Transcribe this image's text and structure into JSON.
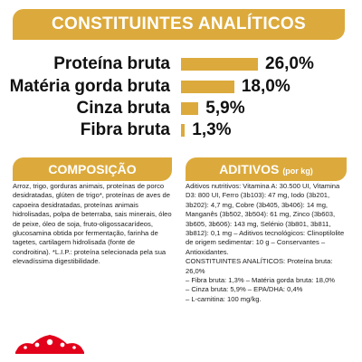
{
  "analytic": {
    "title": "CONSTITUINTES ANALÍTICOS",
    "rows": [
      {
        "label": "Proteína bruta",
        "value": "26,0%",
        "percent": 26.0
      },
      {
        "label": "Matéria gorda bruta",
        "value": "18,0%",
        "percent": 18.0
      },
      {
        "label": "Cinza bruta",
        "value": "5,9%",
        "percent": 5.9
      },
      {
        "label": "Fibra bruta",
        "value": "1,3%",
        "percent": 1.3
      }
    ]
  },
  "composition": {
    "title": "COMPOSIÇÃO",
    "text": "Arroz, trigo, gorduras animais, proteínas de porco desidratadas, glúten de trigo*, proteínas de aves de capoeira desidratadas, proteínas animais hidrolisadas, polpa de beterraba, sais minerais, óleo de peixe, óleo de soja, fruto-oligossacarídeos, glucosamina obtida por fermentação, farinha de tagetes, cartilagem hidrolisada (fonte de condroitina). *L.I.P.: proteína selecionada pela sua elevadíssima digestibilidade."
  },
  "additives": {
    "title": "ADITIVOS",
    "unit": "(por kg)",
    "lines": [
      "Aditivos nutritivos: Vitamina A: 30.500 UI, Vitamina D3: 800 UI, Ferro (3b103): 47 mg, Iodo (3b201, 3b202): 4,7 mg, Cobre (3b405, 3b406): 14 mg, Manganês (3b502, 3b504): 61 mg, Zinco (3b603, 3b605, 3b606): 143 mg, Selénio (3b801, 3b811, 3b812): 0,1 mg – Aditivos tecnológicos: Clinoptilolite de origem sedimentar: 10 g – Conservantes – Antioxidantes.",
      "CONSTITUINTES ANALÍTICOS: Proteína bruta: 26,0%",
      "– Fibra bruta: 1,3% – Matéria gorda bruta: 18,0%",
      "– Cinza bruta: 5,9% – EPA/DHA: 0,4%",
      "– L-carnitina: 100 mg/kg."
    ]
  },
  "brand": {
    "logo_icon": "royal-canin-crown-logo",
    "accent_color": "#dcaa3c",
    "logo_color": "#e2001a"
  }
}
